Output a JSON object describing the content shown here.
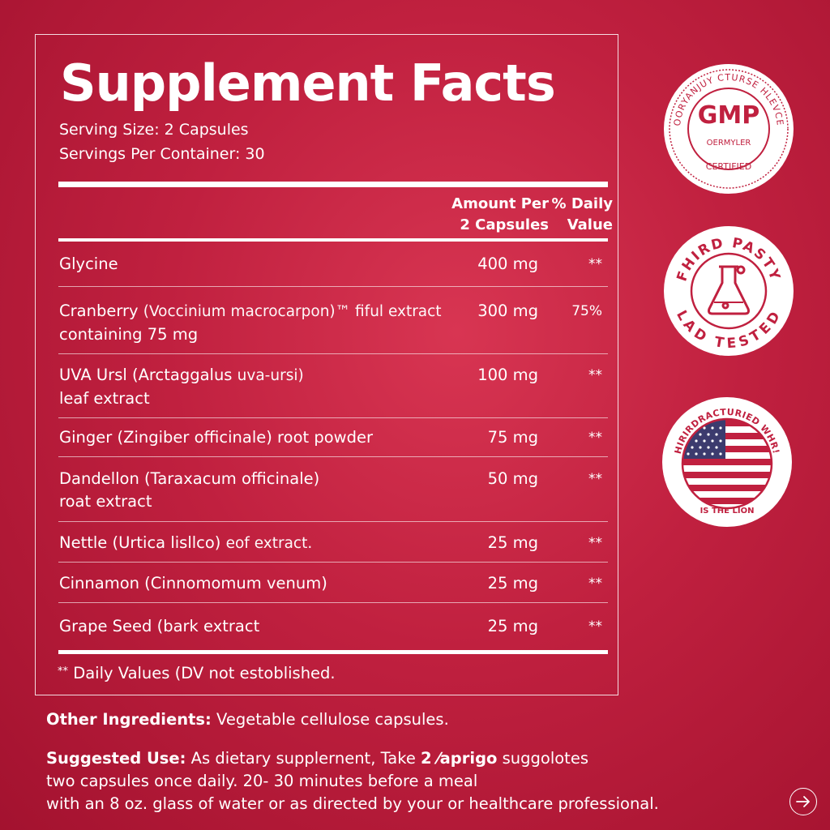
{
  "panel": {
    "title": "Supplement Facts",
    "serving_size": "Serving Size: 2 Capsules",
    "servings_per_container": "Servings Per Container: 30",
    "header_amount_line1": "Amount Per",
    "header_amount_line2": "2 Capsules",
    "header_dv_line1": "% Daily",
    "header_dv_line2": "Value",
    "rows": [
      {
        "name": "Glycine",
        "sci": "",
        "name_line2": "",
        "amount": "400 mg",
        "dv": "**"
      },
      {
        "name": "Cranberry ",
        "sci": "(Voccinium macrocarpon)™ fiful extract",
        "name_line2": "containing 75 mg",
        "amount": "300 mg",
        "dv": "75%"
      },
      {
        "name": "UVA Ursl (Arctaggalus ",
        "sci": "uva-ursi)",
        "name_line2": "leaf extract",
        "amount": "100 mg",
        "dv": "**"
      },
      {
        "name": "Ginger (Zingiber officinale) root powder",
        "sci": "",
        "name_line2": "",
        "amount": "75 mg",
        "dv": "**"
      },
      {
        "name": "Dandellon (Taraxacum officinale)",
        "sci": "",
        "name_line2": "roat extract",
        "amount": "50 mg",
        "dv": "**"
      },
      {
        "name": "Nettle (Urtica lisllco) ",
        "sci": "eof extract.",
        "name_line2": "",
        "amount": "25 mg",
        "dv": "**"
      },
      {
        "name": "Cinnamon (Cinnomomum venum)",
        "sci": "",
        "name_line2": "",
        "amount": "25 mg",
        "dv": "**"
      },
      {
        "name": "Grape Seed (bark extract",
        "sci": "",
        "name_line2": "",
        "amount": "25 mg",
        "dv": "**"
      }
    ],
    "footnote_mark": "**",
    "footnote": " Daily Values (DV not estoblished."
  },
  "other_ingredients": {
    "label": "Other Ingredients:",
    "text": " Vegetable cellulose capsules."
  },
  "suggested_use": {
    "label": "Suggested Use:",
    "text_a": " As dietary supplernent, Take ",
    "bold_mid": "2 ⁄aprigo",
    "text_b": "  suggolotes",
    "line2": "two capsules once daily. 20- 30 minutes before a meal",
    "line3": "with an 8 oz. glass of water or as directed by your or healthcare professional."
  },
  "badges": {
    "gmp": {
      "center": "GMP",
      "top_arc": "EOORYANJUY CTURSE HLEVCES",
      "sub": "OERMYLER",
      "bottom": "CERTIFIED"
    },
    "lab": {
      "top_arc": "FHIRD PASTY",
      "bottom_arc": "LAD TESTED",
      "icon": "flask-icon"
    },
    "usa": {
      "top_arc": "HIRIRDRACTURIED WHR!",
      "bottom": "IS THE LION",
      "icon": "us-flag-icon"
    }
  },
  "nav": {
    "next_icon": "arrow-right-icon"
  },
  "colors": {
    "background": "#c0203f",
    "text": "#ffffff"
  }
}
